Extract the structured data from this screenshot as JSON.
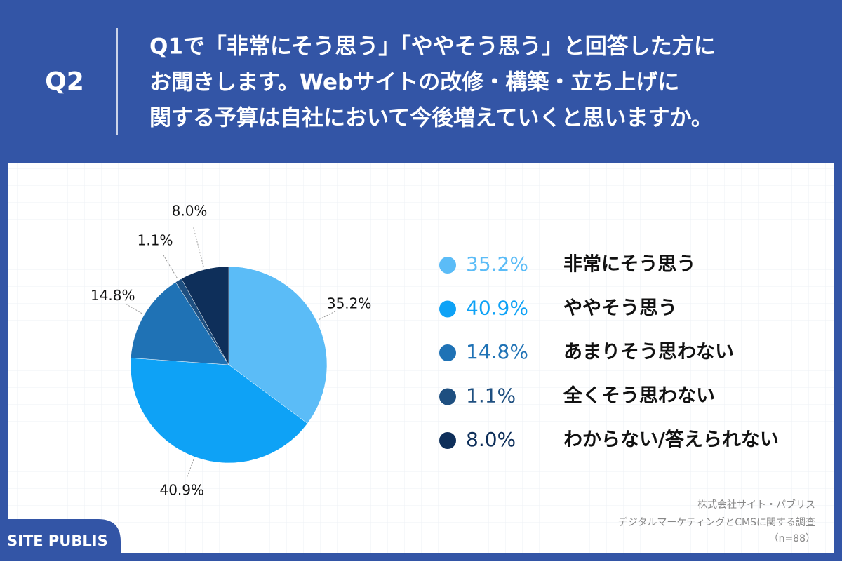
{
  "header": {
    "label": "Q2",
    "question_lines": [
      "Q1で「非常にそう思う」「ややそう思う」と回答した方に",
      "お聞きします。Webサイトの改修・構築・立ち上げに",
      "関する予算は自社において今後増えていくと思いますか。"
    ]
  },
  "chart_data": {
    "type": "pie",
    "categories": [
      "非常にそう思う",
      "ややそう思う",
      "あまりそう思わない",
      "全くそう思わない",
      "わからない/答えられない"
    ],
    "values": [
      35.2,
      40.9,
      14.8,
      1.1,
      8.0
    ],
    "value_labels": [
      "35.2%",
      "40.9%",
      "14.8%",
      "1.1%",
      "8.0%"
    ],
    "colors": [
      "#5bbcf7",
      "#0ea2f6",
      "#1f72b5",
      "#1e4f80",
      "#0e2f5a"
    ]
  },
  "source": [
    "株式会社サイト・パブリス",
    "デジタルマーケティングとCMSに関する調査",
    "（n=88）"
  ],
  "logo": "SITE PUBLIS"
}
